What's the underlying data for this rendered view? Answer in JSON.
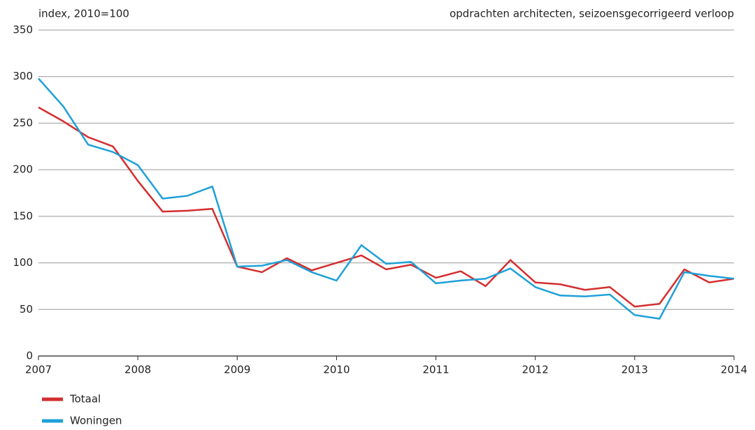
{
  "chart_data": {
    "type": "line",
    "title": "opdrachten architecten, seizoensgecorrigeerd verloop",
    "y_label": "index, 2010=100",
    "x": [
      2007,
      2007.25,
      2007.5,
      2007.75,
      2008,
      2008.25,
      2008.5,
      2008.75,
      2009,
      2009.25,
      2009.5,
      2009.75,
      2010,
      2010.25,
      2010.5,
      2010.75,
      2011,
      2011.25,
      2011.5,
      2011.75,
      2012,
      2012.25,
      2012.5,
      2012.75,
      2013,
      2013.25,
      2013.5,
      2013.75,
      2014
    ],
    "series": [
      {
        "name": "Totaal",
        "color": "#d42e2e",
        "values": [
          267,
          252,
          235,
          225,
          188,
          155,
          156,
          158,
          96,
          90,
          105,
          92,
          100,
          108,
          93,
          98,
          84,
          91,
          75,
          103,
          79,
          77,
          71,
          74,
          53,
          56,
          93,
          79,
          83
        ]
      },
      {
        "name": "Woningen",
        "color": "#1ea0d8",
        "values": [
          298,
          268,
          227,
          219,
          205,
          169,
          172,
          182,
          96,
          97,
          103,
          90,
          81,
          119,
          99,
          101,
          78,
          81,
          83,
          94,
          74,
          65,
          64,
          66,
          44,
          40,
          90,
          86,
          83
        ]
      }
    ],
    "xlim": [
      2007,
      2014
    ],
    "xticks": [
      2007,
      2008,
      2009,
      2010,
      2011,
      2012,
      2013,
      2014
    ],
    "ylim": [
      0,
      350
    ],
    "yticks": [
      0,
      50,
      100,
      150,
      200,
      250,
      300,
      350
    ],
    "grid": true,
    "legend": "bottom-left"
  }
}
